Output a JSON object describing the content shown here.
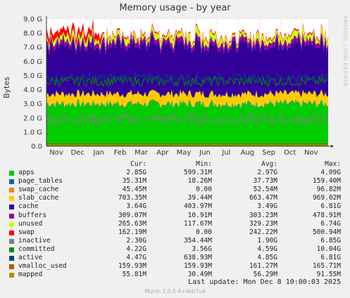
{
  "title": "Memory usage - by year",
  "watermark": "RRDTOOL / TOBI OETIKER",
  "footer": "Munin 2.0.6-4+deb7u4",
  "last_update": "Last update:  Mon Dec  8 10:00:03 2025",
  "legend_header": {
    "cur": "Cur:",
    "min": "Min:",
    "avg": "Avg:",
    "max": "Max:"
  },
  "legend": [
    {
      "name": "apps",
      "color": "#00cc00",
      "cur": "2.85G",
      "min": "599.31M",
      "avg": "2.97G",
      "max": "4.09G"
    },
    {
      "name": "page_tables",
      "color": "#0066b3",
      "cur": "35.31M",
      "min": "18.26M",
      "avg": "37.73M",
      "max": "159.40M"
    },
    {
      "name": "swap_cache",
      "color": "#ff8000",
      "cur": "45.45M",
      "min": "0.00",
      "avg": "52.54M",
      "max": "96.82M"
    },
    {
      "name": "slab_cache",
      "color": "#ffcc00",
      "cur": "703.35M",
      "min": "39.44M",
      "avg": "663.47M",
      "max": "969.02M"
    },
    {
      "name": "cache",
      "color": "#330099",
      "cur": "3.64G",
      "min": "403.97M",
      "avg": "3.49G",
      "max": "6.81G"
    },
    {
      "name": "buffers",
      "color": "#990099",
      "cur": "309.07M",
      "min": "10.91M",
      "avg": "303.23M",
      "max": "478.91M"
    },
    {
      "name": "unused",
      "color": "#ccff00",
      "cur": "265.63M",
      "min": "117.67M",
      "avg": "329.23M",
      "max": "6.74G"
    },
    {
      "name": "swap",
      "color": "#ff0000",
      "cur": "162.19M",
      "min": "0.00",
      "avg": "242.22M",
      "max": "500.94M"
    },
    {
      "name": "inactive",
      "color": "#808080",
      "cur": "2.30G",
      "min": "354.44M",
      "avg": "1.90G",
      "max": "6.85G"
    },
    {
      "name": "committed",
      "color": "#008f00",
      "cur": "4.22G",
      "min": "3.56G",
      "avg": "4.59G",
      "max": "10.04G"
    },
    {
      "name": "active",
      "color": "#00487d",
      "cur": "4.47G",
      "min": "638.93M",
      "avg": "4.85G",
      "max": "6.81G"
    },
    {
      "name": "vmalloc_used",
      "color": "#b35a00",
      "cur": "159.93M",
      "min": "159.93M",
      "avg": "161.27M",
      "max": "165.71M"
    },
    {
      "name": "mapped",
      "color": "#b38f00",
      "cur": "55.81M",
      "min": "30.49M",
      "avg": "56.29M",
      "max": "91.55M"
    }
  ],
  "chart_data": {
    "type": "area",
    "title": "Memory usage - by year",
    "ylabel": "Bytes",
    "xlabel": "",
    "ylim": [
      0,
      9.0
    ],
    "yunit": "G",
    "y_ticks": [
      "0.0",
      "1.0 G",
      "2.0 G",
      "3.0 G",
      "4.0 G",
      "5.0 G",
      "6.0 G",
      "7.0 G",
      "8.0 G",
      "9.0 G"
    ],
    "x_ticks": [
      "Nov",
      "Dec",
      "Jan",
      "Feb",
      "Mar",
      "Apr",
      "May",
      "Jun",
      "Jul",
      "Aug",
      "Sep",
      "Oct",
      "Nov"
    ],
    "grid": true,
    "stack_order": [
      "apps",
      "page_tables",
      "swap_cache",
      "slab_cache",
      "cache",
      "buffers",
      "unused",
      "swap"
    ],
    "line_series": [
      "inactive",
      "committed",
      "active",
      "vmalloc_used",
      "mapped"
    ],
    "series_levels_gb": {
      "apps": 2.97,
      "page_tables": 0.04,
      "swap_cache": 0.05,
      "slab_cache": 0.65,
      "cache": 3.49,
      "buffers": 0.3,
      "unused": 0.33,
      "swap": 0.24,
      "inactive": 1.9,
      "committed": 4.59,
      "active": 4.85,
      "vmalloc_used": 0.16,
      "mapped": 0.06
    }
  }
}
